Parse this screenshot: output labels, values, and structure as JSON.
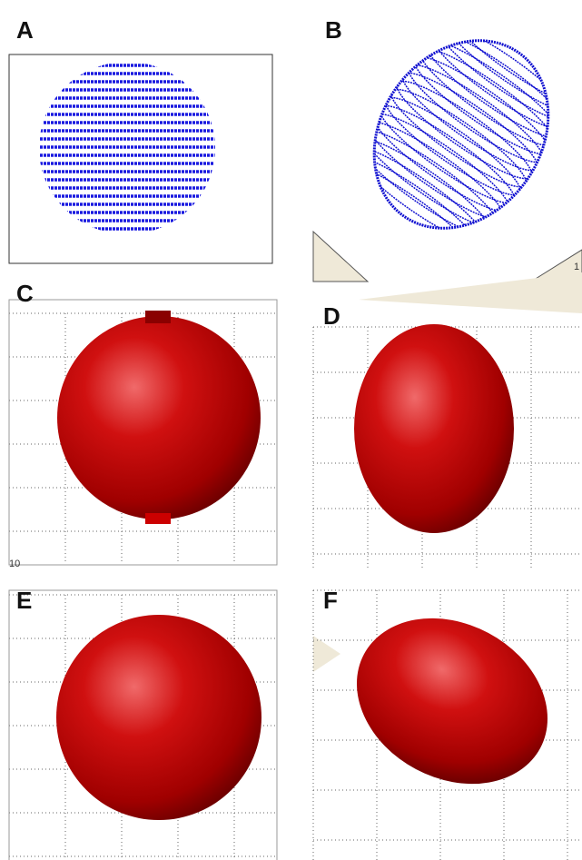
{
  "panels": [
    {
      "label": "A"
    },
    {
      "label": "B",
      "tick_label": "1"
    },
    {
      "label": "C",
      "tick_label": "10"
    },
    {
      "label": "D"
    },
    {
      "label": "E"
    },
    {
      "label": "F"
    }
  ]
}
